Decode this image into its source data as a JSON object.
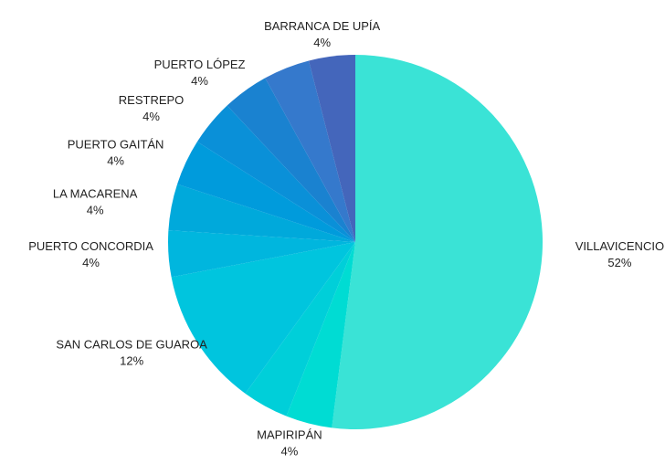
{
  "chart_data": {
    "type": "pie",
    "categories": [
      "VILLAVICENCIO",
      "MAPIRIPÁN",
      null,
      "SAN CARLOS DE GUAROA",
      "PUERTO CONCORDIA",
      "LA MACARENA",
      "PUERTO GAITÁN",
      "RESTREPO",
      "PUERTO LÓPEZ",
      null,
      "BARRANCA DE UPÍA"
    ],
    "values": [
      52,
      4,
      4,
      12,
      4,
      4,
      4,
      4,
      4,
      4,
      4
    ],
    "value_labels": [
      "52%",
      "4%",
      null,
      "12%",
      "4%",
      "4%",
      "4%",
      "4%",
      "4%",
      null,
      "4%"
    ],
    "colors": [
      "#3ae3d6",
      "#00dcd3",
      "#00cfd9",
      "#00c5de",
      "#00b6de",
      "#00a9db",
      "#009bdc",
      "#0a90d8",
      "#1a82d0",
      "#3579cc",
      "#4466bb"
    ]
  }
}
